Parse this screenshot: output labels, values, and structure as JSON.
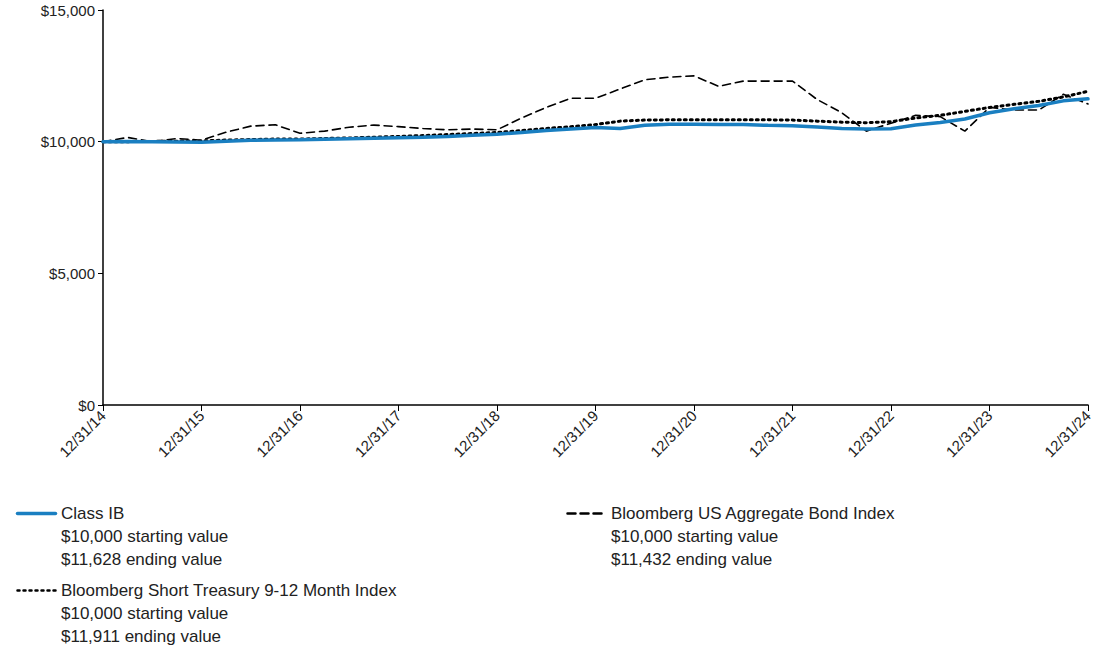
{
  "chart_data": {
    "type": "line",
    "categories": [
      "12/31/14",
      null,
      null,
      null,
      "12/31/15",
      null,
      null,
      null,
      "12/31/16",
      null,
      null,
      null,
      "12/31/17",
      null,
      null,
      null,
      "12/31/18",
      null,
      null,
      null,
      "12/31/19",
      null,
      null,
      null,
      "12/31/20",
      null,
      null,
      null,
      "12/31/21",
      null,
      null,
      null,
      "12/31/22",
      null,
      null,
      null,
      "12/31/23",
      null,
      null,
      null,
      "12/31/24"
    ],
    "series": [
      {
        "name": "Class IB",
        "color": "#1a7fc1",
        "line_style": "solid",
        "start_label": "$10,000 starting value",
        "end_label": "$11,628 ending value",
        "values": [
          10000,
          10010,
          10000,
          9990,
          9980,
          10020,
          10050,
          10060,
          10070,
          10090,
          10110,
          10130,
          10150,
          10170,
          10200,
          10240,
          10280,
          10350,
          10420,
          10480,
          10540,
          10500,
          10620,
          10660,
          10660,
          10650,
          10650,
          10620,
          10600,
          10560,
          10500,
          10480,
          10490,
          10630,
          10730,
          10860,
          11100,
          11250,
          11370,
          11550,
          11628
        ]
      },
      {
        "name": "Bloomberg US Aggregate Bond Index",
        "color": "#000000",
        "line_style": "dashed",
        "start_label": "$10,000 starting value",
        "end_label": "$11,432 ending value",
        "values": [
          10000,
          10160,
          10000,
          10120,
          10055,
          10360,
          10590,
          10640,
          10320,
          10400,
          10550,
          10630,
          10570,
          10500,
          10450,
          10480,
          10450,
          10900,
          11300,
          11650,
          11650,
          12000,
          12350,
          12450,
          12500,
          12100,
          12300,
          12300,
          12300,
          11600,
          11100,
          10400,
          10700,
          11000,
          10950,
          10400,
          11300,
          11200,
          11200,
          11800,
          11432
        ]
      },
      {
        "name": "Bloomberg Short Treasury 9-12 Month Index",
        "color": "#000000",
        "line_style": "dotted",
        "start_label": "$10,000 starting value",
        "end_label": "$11,911 ending value",
        "values": [
          10000,
          10000,
          10010,
          10020,
          10030,
          10060,
          10080,
          10100,
          10100,
          10120,
          10140,
          10170,
          10200,
          10230,
          10270,
          10310,
          10350,
          10420,
          10500,
          10570,
          10650,
          10780,
          10820,
          10830,
          10830,
          10830,
          10830,
          10830,
          10820,
          10780,
          10740,
          10720,
          10760,
          10900,
          11000,
          11150,
          11300,
          11420,
          11530,
          11700,
          11911
        ]
      }
    ],
    "ylim": [
      0,
      15000
    ],
    "yticks": [
      {
        "value": 0,
        "label": "$0"
      },
      {
        "value": 5000,
        "label": "$5,000"
      },
      {
        "value": 10000,
        "label": "$10,000"
      },
      {
        "value": 15000,
        "label": "$15,000"
      }
    ],
    "grid": false
  }
}
